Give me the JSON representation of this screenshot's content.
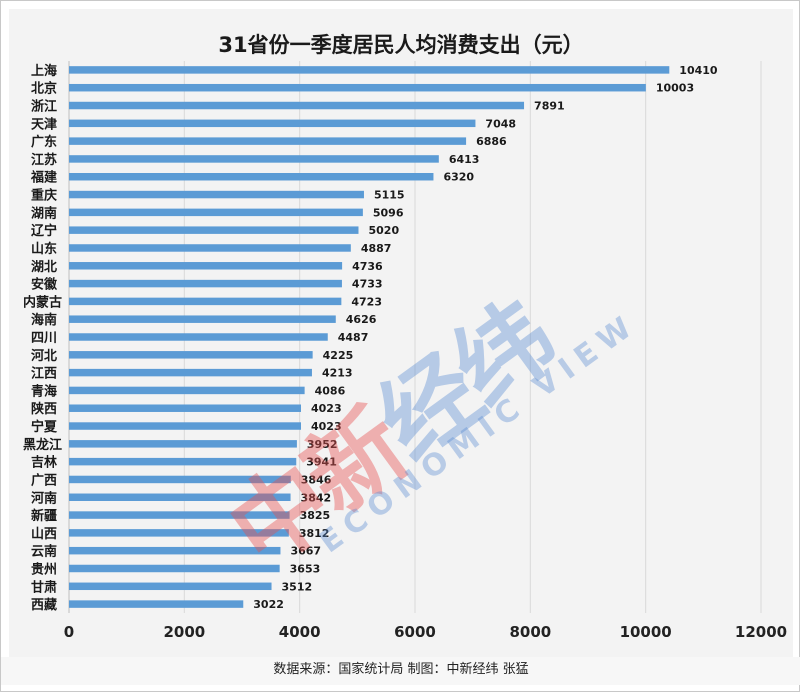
{
  "chart_data": {
    "type": "bar",
    "orientation": "horizontal",
    "title": "31省份一季度居民人均消费支出（元）",
    "categories": [
      "上海",
      "北京",
      "浙江",
      "天津",
      "广东",
      "江苏",
      "福建",
      "重庆",
      "湖南",
      "辽宁",
      "山东",
      "湖北",
      "安徽",
      "内蒙古",
      "海南",
      "四川",
      "河北",
      "江西",
      "青海",
      "陕西",
      "宁夏",
      "黑龙江",
      "吉林",
      "广西",
      "河南",
      "新疆",
      "山西",
      "云南",
      "贵州",
      "甘肃",
      "西藏"
    ],
    "values": [
      10410,
      10003,
      7891,
      7048,
      6886,
      6413,
      6320,
      5115,
      5096,
      5020,
      4887,
      4736,
      4733,
      4723,
      4626,
      4487,
      4225,
      4213,
      4086,
      4023,
      4023,
      3952,
      3941,
      3846,
      3842,
      3825,
      3812,
      3667,
      3653,
      3512,
      3022
    ],
    "xlim": [
      0,
      12000
    ],
    "xticks": [
      "0",
      "2000",
      "4000",
      "6000",
      "8000",
      "10000",
      "12000"
    ],
    "grid": true,
    "bar_color": "#5b9bd5"
  },
  "footer": "数据来源：国家统计局 制图：中新经纬 张猛",
  "watermark": {
    "part1": "中新",
    "part2": "经纬",
    "english": "ECONOMIC VIEW"
  }
}
